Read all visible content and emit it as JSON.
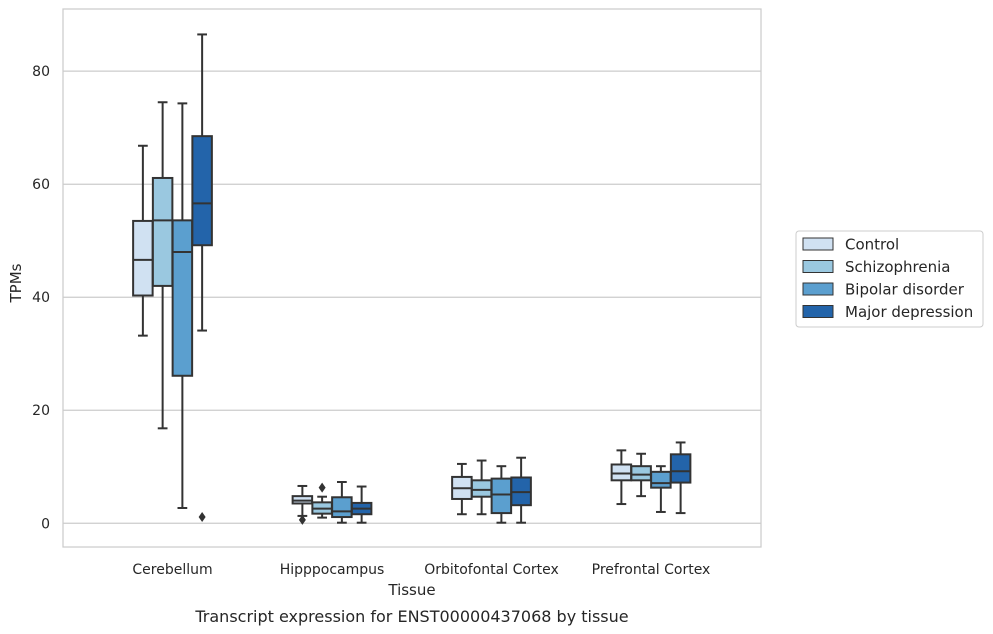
{
  "chart_data": {
    "type": "box",
    "caption": "Transcript expression for ENST00000437068 by tissue",
    "xlabel": "Tissue",
    "ylabel": "TPMs",
    "ylim": [
      -4.2,
      91
    ],
    "yticks": [
      0,
      20,
      40,
      60,
      80
    ],
    "grid": "horizontal",
    "legend_position": "right",
    "categories": [
      "Cerebellum",
      "Hipppocampus",
      "Orbitofontal Cortex",
      "Prefrontal Cortex"
    ],
    "series": [
      {
        "name": "Control",
        "color": "#d0e1f2",
        "boxes": [
          {
            "whislo": 33.2,
            "q1": 40.3,
            "med": 46.6,
            "q3": 53.5,
            "whishi": 66.8,
            "fliers": []
          },
          {
            "whislo": 1.3,
            "q1": 3.5,
            "med": 4.0,
            "q3": 4.8,
            "whishi": 6.6,
            "fliers": [
              0.6
            ]
          },
          {
            "whislo": 1.6,
            "q1": 4.3,
            "med": 6.2,
            "q3": 8.2,
            "whishi": 10.5,
            "fliers": []
          },
          {
            "whislo": 3.4,
            "q1": 7.6,
            "med": 8.8,
            "q3": 10.4,
            "whishi": 12.9,
            "fliers": []
          }
        ]
      },
      {
        "name": "Schizophrenia",
        "color": "#9ac8e0",
        "boxes": [
          {
            "whislo": 16.8,
            "q1": 42.0,
            "med": 53.6,
            "q3": 61.1,
            "whishi": 74.5,
            "fliers": []
          },
          {
            "whislo": 1.0,
            "q1": 1.7,
            "med": 2.6,
            "q3": 3.7,
            "whishi": 4.7,
            "fliers": [
              6.3
            ]
          },
          {
            "whislo": 1.6,
            "q1": 4.7,
            "med": 5.9,
            "q3": 7.6,
            "whishi": 11.1,
            "fliers": []
          },
          {
            "whislo": 4.8,
            "q1": 7.6,
            "med": 8.6,
            "q3": 10.1,
            "whishi": 12.3,
            "fliers": []
          }
        ]
      },
      {
        "name": "Bipolar disorder",
        "color": "#5b9fcf",
        "boxes": [
          {
            "whislo": 2.7,
            "q1": 26.1,
            "med": 48.0,
            "q3": 53.6,
            "whishi": 74.3,
            "fliers": []
          },
          {
            "whislo": 0.1,
            "q1": 1.1,
            "med": 2.1,
            "q3": 4.6,
            "whishi": 7.3,
            "fliers": []
          },
          {
            "whislo": 0.1,
            "q1": 1.8,
            "med": 5.1,
            "q3": 7.9,
            "whishi": 10.1,
            "fliers": []
          },
          {
            "whislo": 2.0,
            "q1": 6.3,
            "med": 7.1,
            "q3": 9.1,
            "whishi": 10.1,
            "fliers": []
          }
        ]
      },
      {
        "name": "Major depression",
        "color": "#2364aa",
        "boxes": [
          {
            "whislo": 34.1,
            "q1": 49.2,
            "med": 56.6,
            "q3": 68.5,
            "whishi": 86.5,
            "fliers": [
              1.1
            ]
          },
          {
            "whislo": 0.1,
            "q1": 1.6,
            "med": 2.6,
            "q3": 3.6,
            "whishi": 6.5,
            "fliers": []
          },
          {
            "whislo": 0.1,
            "q1": 3.2,
            "med": 5.5,
            "q3": 8.1,
            "whishi": 11.6,
            "fliers": []
          },
          {
            "whislo": 1.8,
            "q1": 7.2,
            "med": 9.2,
            "q3": 12.2,
            "whishi": 14.3,
            "fliers": []
          }
        ]
      }
    ]
  }
}
